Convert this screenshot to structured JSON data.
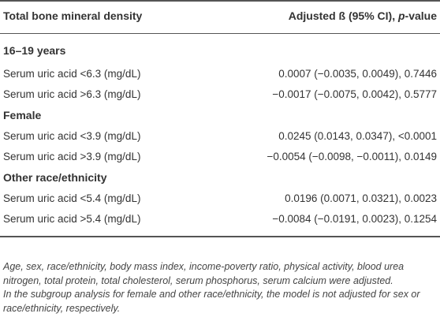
{
  "table": {
    "header": {
      "col1": "Total bone mineral density",
      "col2_prefix": "Adjusted ß (95% CI), ",
      "col2_italic": "p",
      "col2_suffix": "-value"
    },
    "groups": [
      {
        "title": "16–19 years",
        "rows": [
          {
            "label": "Serum uric acid <6.3 (mg/dL)",
            "value": "0.0007 (−0.0035, 0.0049), 0.7446"
          },
          {
            "label": "Serum uric acid >6.3 (mg/dL)",
            "value": "−0.0017 (−0.0075, 0.0042), 0.5777"
          }
        ]
      },
      {
        "title": "Female",
        "rows": [
          {
            "label": "Serum uric acid <3.9 (mg/dL)",
            "value": "0.0245 (0.0143, 0.0347), <0.0001"
          },
          {
            "label": "Serum uric acid >3.9 (mg/dL)",
            "value": "−0.0054 (−0.0098, −0.0011), 0.0149"
          }
        ]
      },
      {
        "title": "Other race/ethnicity",
        "rows": [
          {
            "label": "Serum uric acid <5.4 (mg/dL)",
            "value": "0.0196 (0.0071, 0.0321), 0.0023"
          },
          {
            "label": "Serum uric acid >5.4 (mg/dL)",
            "value": "−0.0084 (−0.0191, 0.0023), 0.1254"
          }
        ]
      }
    ]
  },
  "footnotes": [
    "Age, sex, race/ethnicity, body mass index, income-poverty ratio, physical activity, blood urea nitrogen, total protein, total cholesterol, serum phosphorus, serum calcium were adjusted.",
    "In the subgroup analysis for female and other race/ethnicity, the model is not adjusted for sex or race/ethnicity, respectively."
  ]
}
